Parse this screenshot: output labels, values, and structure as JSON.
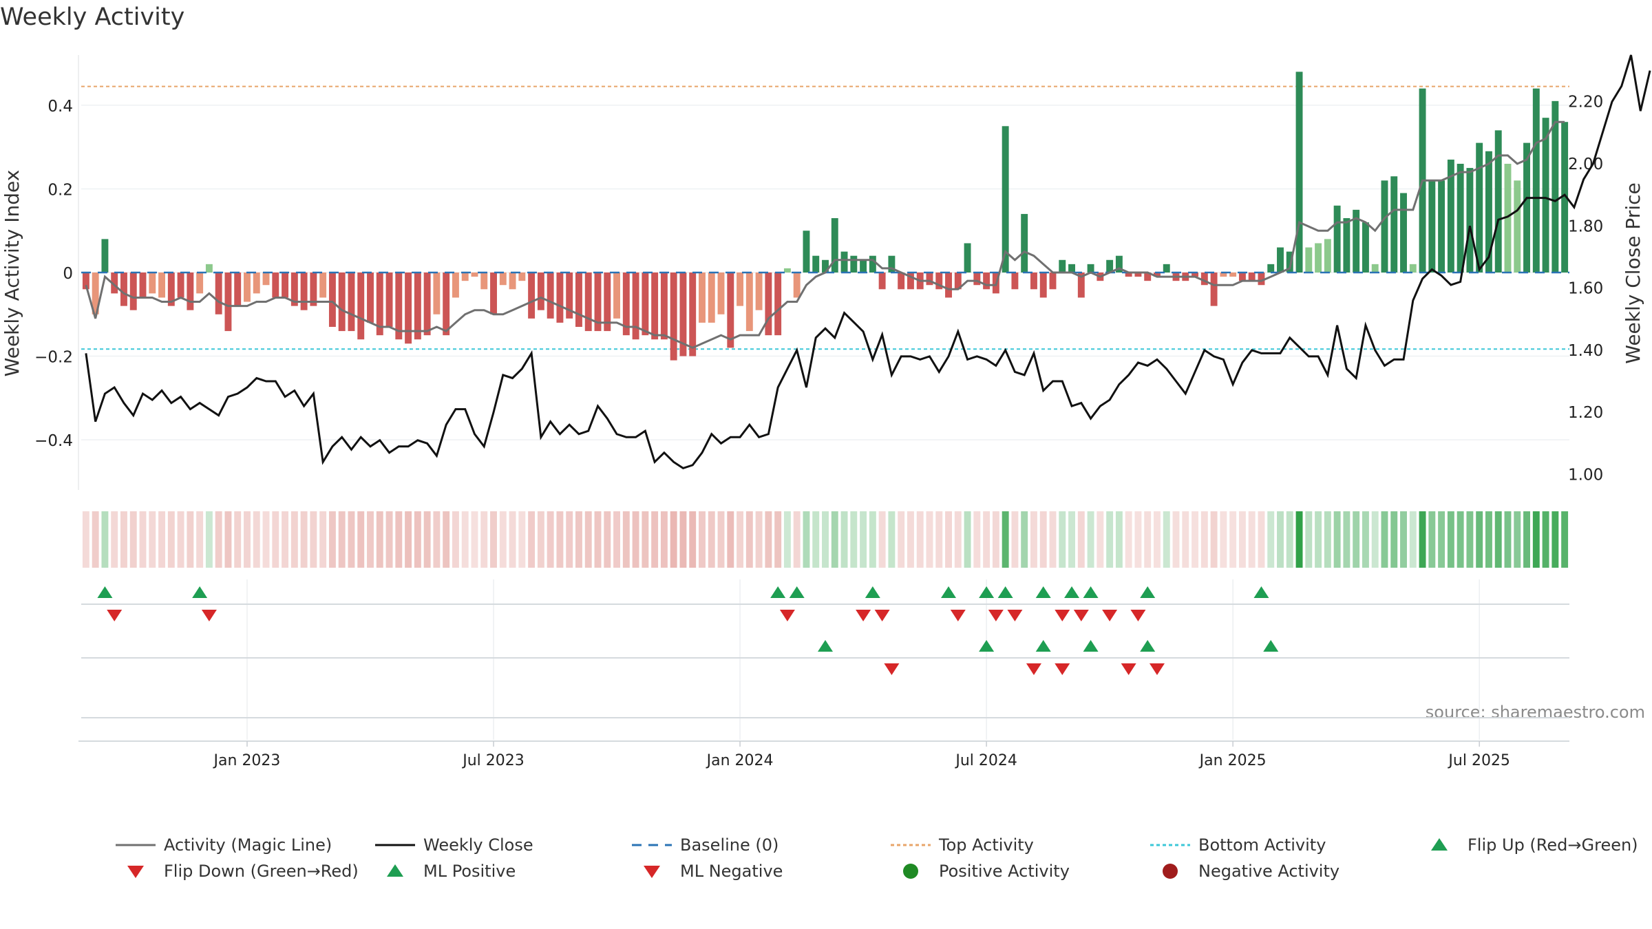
{
  "chart_data": {
    "type": "bar",
    "title": "Weekly Activity",
    "ylabel": "Weekly Activity Index",
    "y2label": "Weekly Close Price",
    "source": "source: sharemaestro.com",
    "ylim": [
      -0.52,
      0.52
    ],
    "y2lim": [
      0.95,
      2.35
    ],
    "yticks": [
      {
        "v": 0.4,
        "label": "0.4"
      },
      {
        "v": 0.2,
        "label": "0.2"
      },
      {
        "v": 0,
        "label": "0"
      },
      {
        "v": -0.2,
        "label": "−0.2"
      },
      {
        "v": -0.4,
        "label": "−0.4"
      }
    ],
    "y2ticks": [
      {
        "v": 2.2,
        "label": "2.20"
      },
      {
        "v": 2.0,
        "label": "2.00"
      },
      {
        "v": 1.8,
        "label": "1.80"
      },
      {
        "v": 1.6,
        "label": "1.60"
      },
      {
        "v": 1.4,
        "label": "1.40"
      },
      {
        "v": 1.2,
        "label": "1.20"
      },
      {
        "v": 1.0,
        "label": "1.00"
      }
    ],
    "xticks": [
      {
        "week": 17,
        "label": "Jan 2023"
      },
      {
        "week": 43,
        "label": "Jul 2023"
      },
      {
        "week": 69,
        "label": "Jan 2024"
      },
      {
        "week": 95,
        "label": "Jul 2024"
      },
      {
        "week": 121,
        "label": "Jan 2025"
      },
      {
        "week": 147,
        "label": "Jul 2025"
      }
    ],
    "top_activity": 0.445,
    "bottom_activity": -0.183,
    "weeks": 157,
    "activity": [
      -0.04,
      -0.1,
      0.08,
      -0.05,
      -0.08,
      -0.09,
      -0.06,
      -0.05,
      -0.06,
      -0.08,
      -0.06,
      -0.09,
      -0.05,
      0.02,
      -0.1,
      -0.14,
      -0.08,
      -0.07,
      -0.05,
      -0.03,
      -0.06,
      -0.06,
      -0.08,
      -0.09,
      -0.08,
      -0.06,
      -0.13,
      -0.14,
      -0.14,
      -0.16,
      -0.12,
      -0.15,
      -0.13,
      -0.16,
      -0.17,
      -0.16,
      -0.15,
      -0.1,
      -0.15,
      -0.06,
      -0.02,
      -0.01,
      -0.04,
      -0.1,
      -0.03,
      -0.04,
      -0.02,
      -0.11,
      -0.09,
      -0.11,
      -0.12,
      -0.11,
      -0.13,
      -0.14,
      -0.14,
      -0.14,
      -0.11,
      -0.15,
      -0.16,
      -0.15,
      -0.16,
      -0.16,
      -0.21,
      -0.2,
      -0.2,
      -0.12,
      -0.12,
      -0.1,
      -0.18,
      -0.08,
      -0.14,
      -0.09,
      -0.15,
      -0.15,
      0.01,
      -0.06,
      0.1,
      0.04,
      0.03,
      0.13,
      0.05,
      0.04,
      0.03,
      0.04,
      -0.04,
      0.04,
      -0.04,
      -0.04,
      -0.04,
      -0.03,
      -0.04,
      -0.06,
      -0.04,
      0.07,
      -0.03,
      -0.04,
      -0.05,
      0.35,
      -0.04,
      0.14,
      -0.04,
      -0.06,
      -0.04,
      0.03,
      0.02,
      -0.06,
      0.02,
      -0.02,
      0.03,
      0.04,
      -0.01,
      -0.01,
      -0.02,
      -0.01,
      0.02,
      -0.02,
      -0.02,
      -0.01,
      -0.03,
      -0.08,
      -0.01,
      -0.01,
      -0.02,
      -0.02,
      -0.03,
      0.02,
      0.06,
      0.05,
      0.48,
      0.06,
      0.07,
      0.08,
      0.16,
      0.13,
      0.15,
      0.12,
      0.02,
      0.22,
      0.23,
      0.19,
      0.02,
      0.44,
      0.22,
      0.22,
      0.27,
      0.26,
      0.25,
      0.31,
      0.29,
      0.34,
      0.26,
      0.22,
      0.31,
      0.44,
      0.37,
      0.41,
      0.36
    ],
    "magic_line": [
      -0.03,
      -0.11,
      -0.01,
      -0.03,
      -0.05,
      -0.06,
      -0.06,
      -0.06,
      -0.07,
      -0.07,
      -0.06,
      -0.07,
      -0.07,
      -0.05,
      -0.07,
      -0.08,
      -0.08,
      -0.08,
      -0.07,
      -0.07,
      -0.06,
      -0.06,
      -0.07,
      -0.07,
      -0.07,
      -0.07,
      -0.07,
      -0.09,
      -0.1,
      -0.11,
      -0.12,
      -0.13,
      -0.13,
      -0.14,
      -0.14,
      -0.14,
      -0.14,
      -0.13,
      -0.14,
      -0.12,
      -0.1,
      -0.09,
      -0.09,
      -0.1,
      -0.1,
      -0.09,
      -0.08,
      -0.07,
      -0.06,
      -0.07,
      -0.08,
      -0.09,
      -0.1,
      -0.11,
      -0.12,
      -0.12,
      -0.12,
      -0.13,
      -0.13,
      -0.14,
      -0.15,
      -0.15,
      -0.16,
      -0.17,
      -0.18,
      -0.17,
      -0.16,
      -0.15,
      -0.16,
      -0.15,
      -0.15,
      -0.15,
      -0.11,
      -0.09,
      -0.07,
      -0.07,
      -0.03,
      -0.01,
      0.0,
      0.03,
      0.03,
      0.03,
      0.03,
      0.03,
      0.01,
      0.01,
      0.0,
      -0.01,
      -0.02,
      -0.02,
      -0.03,
      -0.04,
      -0.04,
      -0.02,
      -0.02,
      -0.03,
      -0.03,
      0.05,
      0.03,
      0.05,
      0.04,
      0.02,
      0.0,
      0.0,
      0.0,
      -0.01,
      0.0,
      -0.01,
      0.0,
      0.01,
      0.0,
      0.0,
      0.0,
      -0.01,
      -0.01,
      -0.01,
      -0.01,
      -0.01,
      -0.02,
      -0.03,
      -0.03,
      -0.03,
      -0.02,
      -0.02,
      -0.02,
      -0.01,
      0.0,
      0.01,
      0.12,
      0.11,
      0.1,
      0.1,
      0.12,
      0.12,
      0.13,
      0.12,
      0.1,
      0.13,
      0.15,
      0.15,
      0.15,
      0.22,
      0.22,
      0.22,
      0.23,
      0.24,
      0.24,
      0.25,
      0.26,
      0.28,
      0.28,
      0.26,
      0.27,
      0.31,
      0.32,
      0.36,
      0.36
    ],
    "close": [
      1.39,
      1.17,
      1.26,
      1.28,
      1.23,
      1.19,
      1.26,
      1.24,
      1.27,
      1.23,
      1.25,
      1.21,
      1.23,
      1.21,
      1.19,
      1.25,
      1.26,
      1.28,
      1.31,
      1.3,
      1.3,
      1.25,
      1.27,
      1.22,
      1.26,
      1.04,
      1.09,
      1.12,
      1.08,
      1.12,
      1.09,
      1.11,
      1.07,
      1.09,
      1.09,
      1.11,
      1.1,
      1.06,
      1.16,
      1.21,
      1.21,
      1.13,
      1.09,
      1.2,
      1.32,
      1.31,
      1.34,
      1.39,
      1.12,
      1.17,
      1.13,
      1.16,
      1.13,
      1.14,
      1.22,
      1.18,
      1.13,
      1.12,
      1.12,
      1.14,
      1.04,
      1.07,
      1.04,
      1.02,
      1.03,
      1.07,
      1.13,
      1.1,
      1.12,
      1.12,
      1.16,
      1.12,
      1.13,
      1.28,
      1.34,
      1.4,
      1.28,
      1.44,
      1.47,
      1.44,
      1.52,
      1.49,
      1.46,
      1.37,
      1.45,
      1.32,
      1.38,
      1.38,
      1.37,
      1.38,
      1.33,
      1.38,
      1.46,
      1.37,
      1.38,
      1.37,
      1.35,
      1.4,
      1.33,
      1.32,
      1.39,
      1.27,
      1.3,
      1.3,
      1.22,
      1.23,
      1.18,
      1.22,
      1.24,
      1.29,
      1.32,
      1.36,
      1.35,
      1.37,
      1.34,
      1.3,
      1.26,
      1.33,
      1.4,
      1.38,
      1.37,
      1.29,
      1.36,
      1.4,
      1.39,
      1.39,
      1.39,
      1.44,
      1.41,
      1.38,
      1.38,
      1.32,
      1.48,
      1.34,
      1.31,
      1.48,
      1.4,
      1.35,
      1.37,
      1.37,
      1.56,
      1.63,
      1.66,
      1.64,
      1.61,
      1.62,
      1.8,
      1.66,
      1.7,
      1.82,
      1.83,
      1.85,
      1.89,
      1.89,
      1.89,
      1.88,
      1.9,
      1.86,
      1.95,
      2.0,
      2.1,
      2.2,
      2.25,
      2.35,
      2.17,
      2.3
    ],
    "flip_up_weeks": [
      2,
      12,
      73,
      75,
      83,
      91,
      95,
      97,
      101,
      104,
      106,
      112,
      124
    ],
    "flip_down_weeks": [
      3,
      13,
      74,
      82,
      84,
      92,
      96,
      98,
      103,
      105,
      108,
      111
    ],
    "ml_positive_weeks": [
      78,
      95,
      101,
      106,
      112,
      125
    ],
    "ml_negative_weeks": [
      85,
      100,
      103,
      110,
      113
    ],
    "legend": [
      {
        "label": "Activity (Magic Line)",
        "kind": "line",
        "color": "#707070",
        "dash": ""
      },
      {
        "label": "Weekly Close",
        "kind": "line",
        "color": "#111111",
        "dash": ""
      },
      {
        "label": "Baseline (0)",
        "kind": "line",
        "color": "#2a73b5",
        "dash": "14,10"
      },
      {
        "label": "Top Activity",
        "kind": "line",
        "color": "#e8a56a",
        "dash": "5,4"
      },
      {
        "label": "Bottom Activity",
        "kind": "line",
        "color": "#3cc7d8",
        "dash": "5,4"
      },
      {
        "label": "Flip Up (Red→Green)",
        "kind": "tri-up",
        "color": "#1e9e52",
        "dash": ""
      },
      {
        "label": "Flip Down (Green→Red)",
        "kind": "tri-down",
        "color": "#d62728",
        "dash": ""
      },
      {
        "label": "ML Positive",
        "kind": "tri-up",
        "color": "#1e9e52",
        "dash": ""
      },
      {
        "label": "ML Negative",
        "kind": "tri-down",
        "color": "#d62728",
        "dash": ""
      },
      {
        "label": "Positive Activity",
        "kind": "circle",
        "color": "#1f8a24",
        "dash": ""
      },
      {
        "label": "Negative Activity",
        "kind": "circle",
        "color": "#a01c1c",
        "dash": ""
      }
    ],
    "colors": {
      "pos_strong": "#2e8b57",
      "pos_light": "#8cc98c",
      "neg_strong": "#cc5555",
      "neg_light": "#e8967a",
      "magic_line": "#707070",
      "close_line": "#111111",
      "baseline": "#2a73b5",
      "top_activity": "#e8a56a",
      "bottom_activity": "#3cc7d8",
      "marker_up": "#1e9e52",
      "marker_down": "#d62728"
    }
  }
}
